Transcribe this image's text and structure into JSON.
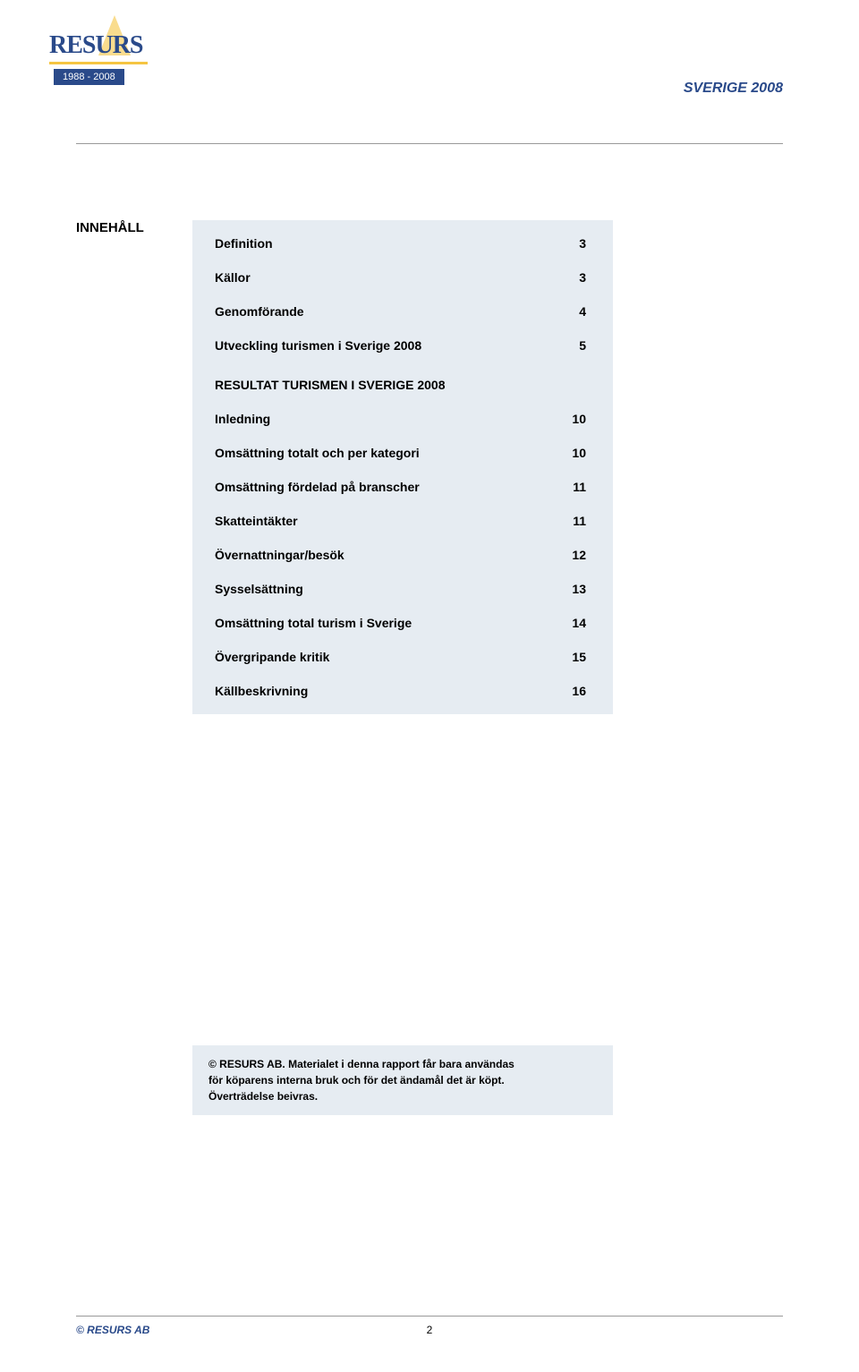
{
  "header": {
    "logo_text": "RESURS",
    "logo_badge": "1988 - 2008",
    "right_text": "SVERIGE 2008"
  },
  "toc": {
    "label": "INNEHÅLL",
    "items_top": [
      {
        "title": "Definition",
        "page": "3"
      },
      {
        "title": "Källor",
        "page": "3"
      },
      {
        "title": "Genomförande",
        "page": "4"
      },
      {
        "title": "Utveckling turismen i Sverige 2008",
        "page": "5"
      }
    ],
    "section_header": "RESULTAT TURISMEN I SVERIGE 2008",
    "items_bottom": [
      {
        "title": "Inledning",
        "page": "10"
      },
      {
        "title": "Omsättning totalt och per kategori",
        "page": "10"
      },
      {
        "title": "Omsättning fördelad på branscher",
        "page": "11"
      },
      {
        "title": "Skatteintäkter",
        "page": "11"
      },
      {
        "title": "Övernattningar/besök",
        "page": "12"
      },
      {
        "title": "Sysselsättning",
        "page": "13"
      },
      {
        "title": "Omsättning total turism i Sverige",
        "page": "14"
      },
      {
        "title": "Övergripande kritik",
        "page": "15"
      },
      {
        "title": "Källbeskrivning",
        "page": "16"
      }
    ]
  },
  "copyright": {
    "line1": "© RESURS AB. Materialet i denna rapport får bara användas",
    "line2": "för köparens interna bruk och för det ändamål det är köpt.",
    "line3": "Överträdelse beivras."
  },
  "footer": {
    "left": "© RESURS  AB",
    "page": "2"
  },
  "colors": {
    "brand_blue": "#2a4a8a",
    "accent_yellow": "#f5c542",
    "box_bg": "#e6ecf2",
    "rule": "#999999",
    "text": "#000000",
    "page_bg": "#ffffff"
  },
  "typography": {
    "body_font": "Arial",
    "logo_font": "Georgia",
    "toc_fontsize_pt": 11,
    "header_right_fontsize_pt": 12,
    "copyright_fontsize_pt": 9
  }
}
